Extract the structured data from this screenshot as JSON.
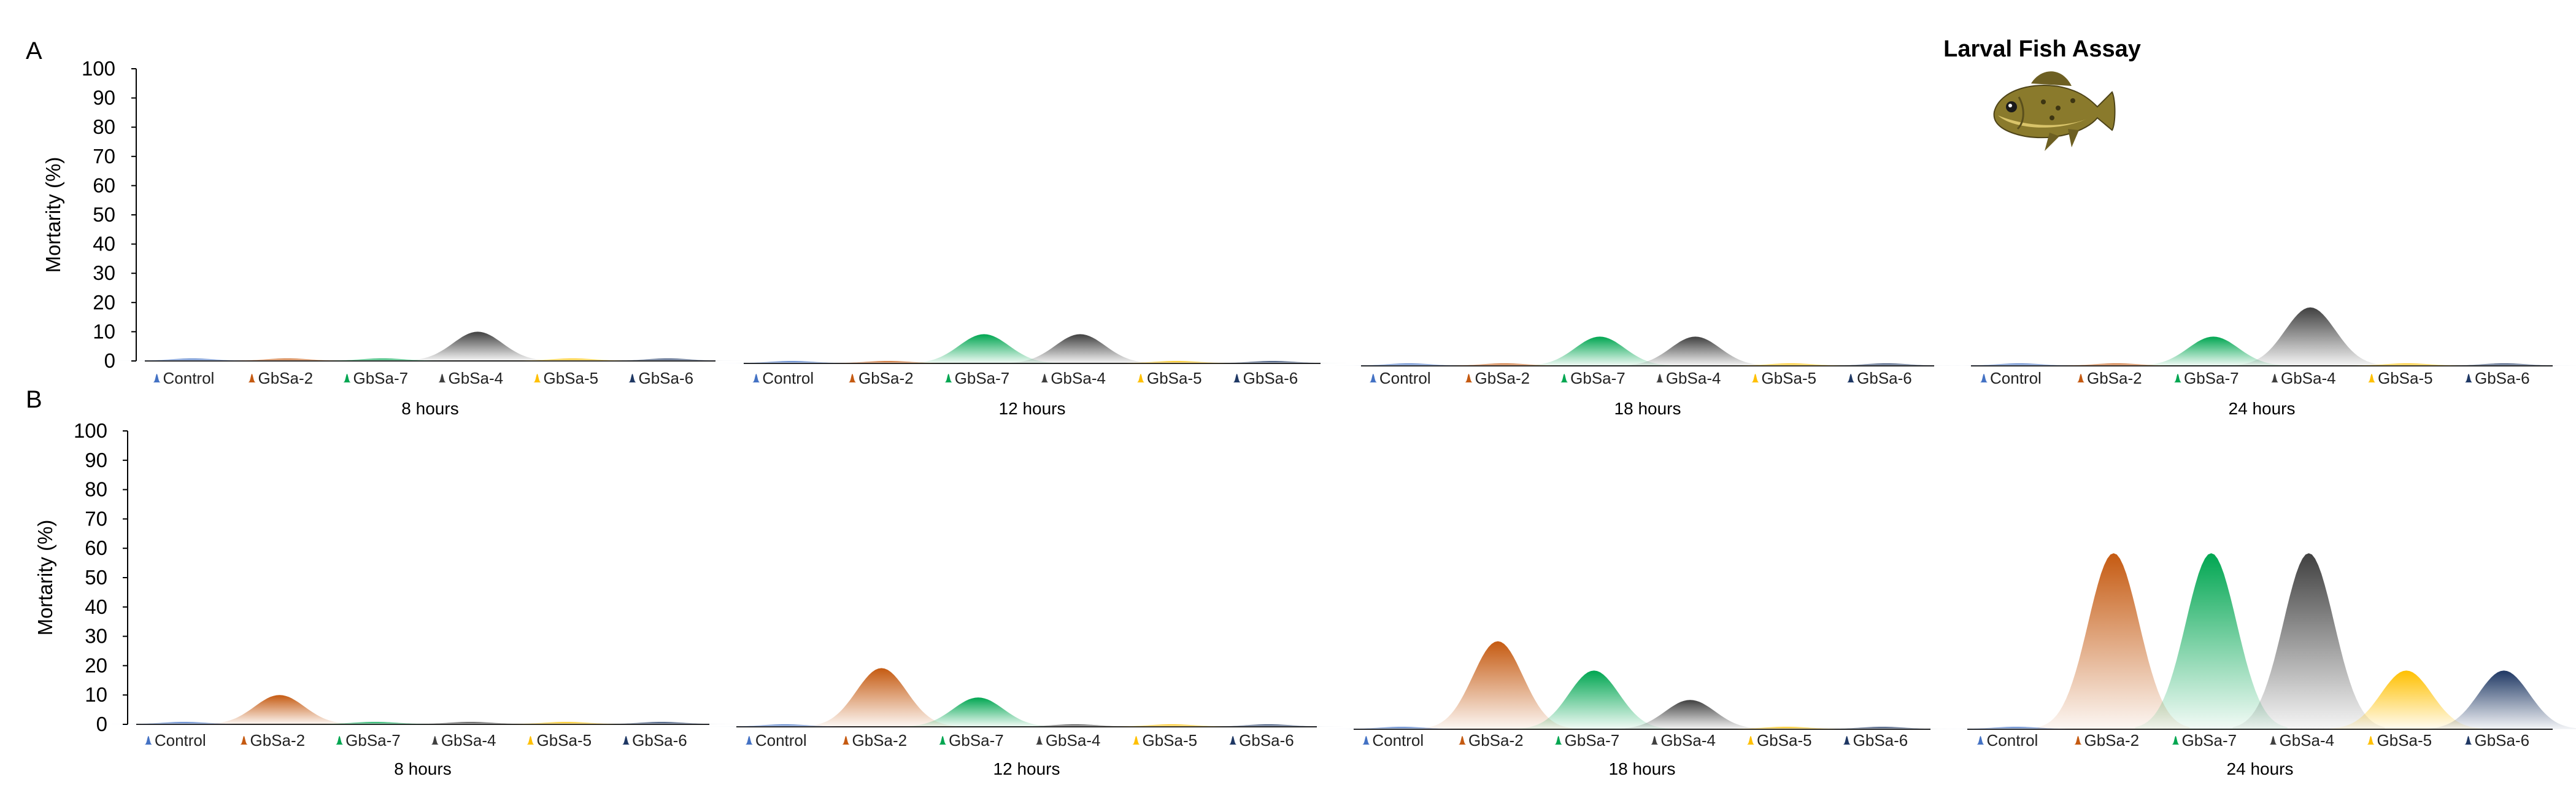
{
  "figure": {
    "title": "Larval Fish Assay",
    "illustration": "larval-fish"
  },
  "colors": {
    "Control": "#4472c4",
    "GbSa-2": "#c55a11",
    "GbSa-7": "#00a651",
    "GbSa-4": "#404040",
    "GbSa-5": "#ffc000",
    "GbSa-6": "#1f3864"
  },
  "chart_data": [
    {
      "type": "area",
      "panel": "A",
      "subtitle": "8 hours",
      "ylabel": "Mortarity (%)",
      "ylim": [
        0,
        100
      ],
      "yticks": [
        0,
        10,
        20,
        30,
        40,
        50,
        60,
        70,
        80,
        90,
        100
      ],
      "categories": [
        "Control",
        "GbSa-2",
        "GbSa-7",
        "GbSa-4",
        "GbSa-5",
        "GbSa-6"
      ],
      "values": [
        0,
        0,
        0,
        10,
        0,
        0
      ]
    },
    {
      "type": "area",
      "panel": "A",
      "subtitle": "12 hours",
      "categories": [
        "Control",
        "GbSa-2",
        "GbSa-7",
        "GbSa-4",
        "GbSa-5",
        "GbSa-6"
      ],
      "values": [
        0,
        0,
        10,
        10,
        0,
        0
      ]
    },
    {
      "type": "area",
      "panel": "A",
      "subtitle": "18 hours",
      "categories": [
        "Control",
        "GbSa-2",
        "GbSa-7",
        "GbSa-4",
        "GbSa-5",
        "GbSa-6"
      ],
      "values": [
        0,
        0,
        10,
        10,
        0,
        0
      ]
    },
    {
      "type": "area",
      "panel": "A",
      "subtitle": "24 hours",
      "categories": [
        "Control",
        "GbSa-2",
        "GbSa-7",
        "GbSa-4",
        "GbSa-5",
        "GbSa-6"
      ],
      "values": [
        0,
        0,
        10,
        20,
        0,
        0
      ]
    },
    {
      "type": "area",
      "panel": "B",
      "subtitle": "8 hours",
      "ylabel": "Mortarity (%)",
      "ylim": [
        0,
        100
      ],
      "yticks": [
        0,
        10,
        20,
        30,
        40,
        50,
        60,
        70,
        80,
        90,
        100
      ],
      "categories": [
        "Control",
        "GbSa-2",
        "GbSa-7",
        "GbSa-4",
        "GbSa-5",
        "GbSa-6"
      ],
      "values": [
        0,
        10,
        0,
        0,
        0,
        0
      ]
    },
    {
      "type": "area",
      "panel": "B",
      "subtitle": "12 hours",
      "categories": [
        "Control",
        "GbSa-2",
        "GbSa-7",
        "GbSa-4",
        "GbSa-5",
        "GbSa-6"
      ],
      "values": [
        0,
        20,
        10,
        0,
        0,
        0
      ]
    },
    {
      "type": "area",
      "panel": "B",
      "subtitle": "18 hours",
      "categories": [
        "Control",
        "GbSa-2",
        "GbSa-7",
        "GbSa-4",
        "GbSa-5",
        "GbSa-6"
      ],
      "values": [
        0,
        30,
        20,
        10,
        0,
        0
      ]
    },
    {
      "type": "area",
      "panel": "B",
      "subtitle": "24 hours",
      "categories": [
        "Control",
        "GbSa-2",
        "GbSa-7",
        "GbSa-4",
        "GbSa-5",
        "GbSa-6"
      ],
      "values": [
        0,
        60,
        60,
        60,
        20,
        20
      ]
    }
  ]
}
